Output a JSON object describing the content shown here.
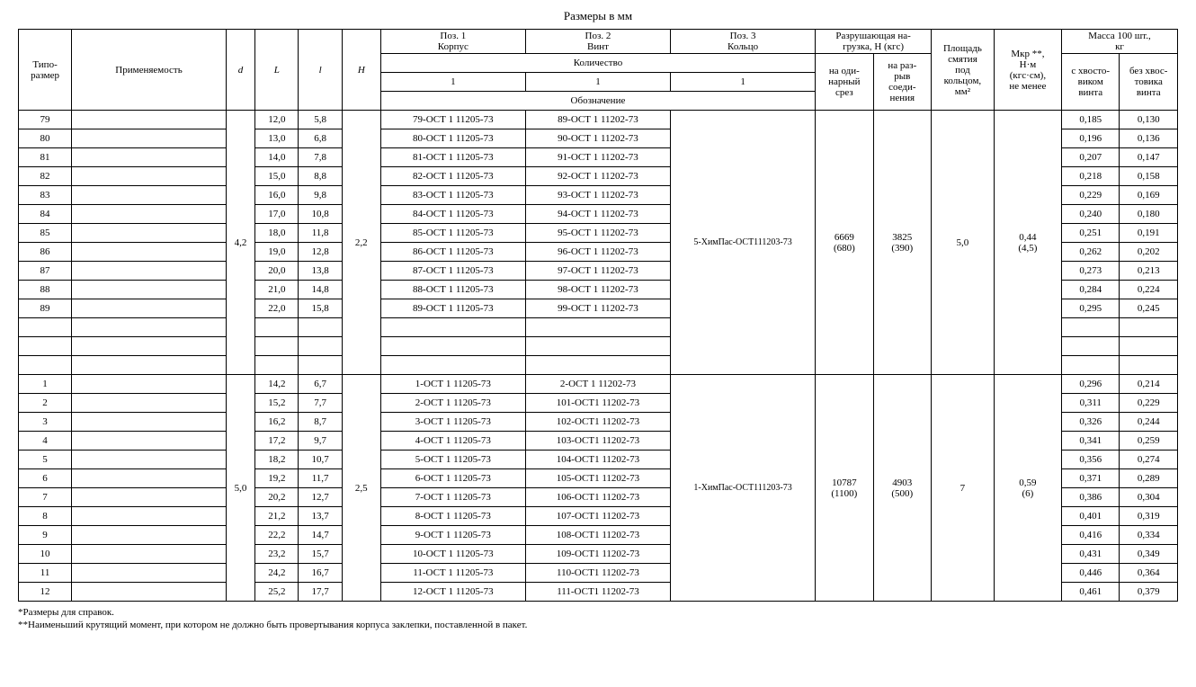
{
  "title": "Размеры в мм",
  "header": {
    "tiposize": "Типо-\nразмер",
    "applicability": "Применяемость",
    "d": "d",
    "L": "L",
    "l": "l",
    "H": "H",
    "pos1": "Поз. 1\nКорпус",
    "pos2": "Поз. 2\nВинт",
    "pos3": "Поз. 3\nКольцо",
    "qty": "Количество",
    "q1": "1",
    "q2": "1",
    "q3": "1",
    "designation": "Обозначение",
    "breaking": "Разрушающая на-\nгрузка, Н (кгс)",
    "shear": "на оди-\nнарный\nсрез",
    "tensile": "на раз-\nрыв\nсоеди-\nнения",
    "area": "Площадь\nсмятия\nпод\nкольцом,\nмм²",
    "mkr": "Mкр **,\nН·м\n(кгс·см),\nне менее",
    "mass": "Масса 100 шт.,\nкг",
    "mass_with": "с хвосто-\nвиком\nвинта",
    "mass_without": "без хвос-\nтовика\nвинта"
  },
  "group1": {
    "d": "4,2",
    "H": "2,2",
    "shear": "6669\n(680)",
    "tensile": "3825\n(390)",
    "area": "5,0",
    "mkr": "0,44\n(4,5)",
    "ring": "5-ХимПас-ОСТ111203-73",
    "rows": [
      {
        "ts": "79",
        "L": "12,0",
        "l": "5,8",
        "p1": "79-ОСТ 1 11205-73",
        "p2": "89-ОСТ 1 11202-73",
        "m1": "0,185",
        "m2": "0,130"
      },
      {
        "ts": "80",
        "L": "13,0",
        "l": "6,8",
        "p1": "80-ОСТ 1 11205-73",
        "p2": "90-ОСТ 1 11202-73",
        "m1": "0,196",
        "m2": "0,136"
      },
      {
        "ts": "81",
        "L": "14,0",
        "l": "7,8",
        "p1": "81-ОСТ 1 11205-73",
        "p2": "91-ОСТ 1 11202-73",
        "m1": "0,207",
        "m2": "0,147"
      },
      {
        "ts": "82",
        "L": "15,0",
        "l": "8,8",
        "p1": "82-ОСТ 1 11205-73",
        "p2": "92-ОСТ 1 11202-73",
        "m1": "0,218",
        "m2": "0,158"
      },
      {
        "ts": "83",
        "L": "16,0",
        "l": "9,8",
        "p1": "83-ОСТ 1 11205-73",
        "p2": "93-ОСТ 1 11202-73",
        "m1": "0,229",
        "m2": "0,169"
      },
      {
        "ts": "84",
        "L": "17,0",
        "l": "10,8",
        "p1": "84-ОСТ 1 11205-73",
        "p2": "94-ОСТ 1 11202-73",
        "m1": "0,240",
        "m2": "0,180"
      },
      {
        "ts": "85",
        "L": "18,0",
        "l": "11,8",
        "p1": "85-ОСТ 1 11205-73",
        "p2": "95-ОСТ 1 11202-73",
        "m1": "0,251",
        "m2": "0,191"
      },
      {
        "ts": "86",
        "L": "19,0",
        "l": "12,8",
        "p1": "86-ОСТ 1 11205-73",
        "p2": "96-ОСТ 1 11202-73",
        "m1": "0,262",
        "m2": "0,202"
      },
      {
        "ts": "87",
        "L": "20,0",
        "l": "13,8",
        "p1": "87-ОСТ 1 11205-73",
        "p2": "97-ОСТ 1 11202-73",
        "m1": "0,273",
        "m2": "0,213"
      },
      {
        "ts": "88",
        "L": "21,0",
        "l": "14,8",
        "p1": "88-ОСТ 1 11205-73",
        "p2": "98-ОСТ 1 11202-73",
        "m1": "0,284",
        "m2": "0,224"
      },
      {
        "ts": "89",
        "L": "22,0",
        "l": "15,8",
        "p1": "89-ОСТ 1 11205-73",
        "p2": "99-ОСТ 1 11202-73",
        "m1": "0,295",
        "m2": "0,245"
      }
    ]
  },
  "group2": {
    "d": "5,0",
    "H": "2,5",
    "shear": "10787\n(1100)",
    "tensile": "4903\n(500)",
    "area": "7",
    "mkr": "0,59\n(6)",
    "ring": "1-ХимПас-ОСТ111203-73",
    "rows": [
      {
        "ts": "1",
        "L": "14,2",
        "l": "6,7",
        "p1": "1-ОСТ 1 11205-73",
        "p2": "2-ОСТ 1 11202-73",
        "m1": "0,296",
        "m2": "0,214"
      },
      {
        "ts": "2",
        "L": "15,2",
        "l": "7,7",
        "p1": "2-ОСТ 1 11205-73",
        "p2": "101-ОСТ1 11202-73",
        "m1": "0,311",
        "m2": "0,229"
      },
      {
        "ts": "3",
        "L": "16,2",
        "l": "8,7",
        "p1": "3-ОСТ 1 11205-73",
        "p2": "102-ОСТ1 11202-73",
        "m1": "0,326",
        "m2": "0,244"
      },
      {
        "ts": "4",
        "L": "17,2",
        "l": "9,7",
        "p1": "4-ОСТ 1 11205-73",
        "p2": "103-ОСТ1 11202-73",
        "m1": "0,341",
        "m2": "0,259"
      },
      {
        "ts": "5",
        "L": "18,2",
        "l": "10,7",
        "p1": "5-ОСТ 1 11205-73",
        "p2": "104-ОСТ1 11202-73",
        "m1": "0,356",
        "m2": "0,274"
      },
      {
        "ts": "6",
        "L": "19,2",
        "l": "11,7",
        "p1": "6-ОСТ 1 11205-73",
        "p2": "105-ОСТ1 11202-73",
        "m1": "0,371",
        "m2": "0,289"
      },
      {
        "ts": "7",
        "L": "20,2",
        "l": "12,7",
        "p1": "7-ОСТ 1 11205-73",
        "p2": "106-ОСТ1 11202-73",
        "m1": "0,386",
        "m2": "0,304"
      },
      {
        "ts": "8",
        "L": "21,2",
        "l": "13,7",
        "p1": "8-ОСТ 1 11205-73",
        "p2": "107-ОСТ1 11202-73",
        "m1": "0,401",
        "m2": "0,319"
      },
      {
        "ts": "9",
        "L": "22,2",
        "l": "14,7",
        "p1": "9-ОСТ 1 11205-73",
        "p2": "108-ОСТ1 11202-73",
        "m1": "0,416",
        "m2": "0,334"
      },
      {
        "ts": "10",
        "L": "23,2",
        "l": "15,7",
        "p1": "10-ОСТ 1 11205-73",
        "p2": "109-ОСТ1 11202-73",
        "m1": "0,431",
        "m2": "0,349"
      },
      {
        "ts": "11",
        "L": "24,2",
        "l": "16,7",
        "p1": "11-ОСТ 1 11205-73",
        "p2": "110-ОСТ1 11202-73",
        "m1": "0,446",
        "m2": "0,364"
      },
      {
        "ts": "12",
        "L": "25,2",
        "l": "17,7",
        "p1": "12-ОСТ 1 11205-73",
        "p2": "111-ОСТ1 11202-73",
        "m1": "0,461",
        "m2": "0,379"
      }
    ]
  },
  "footnotes": {
    "f1": "*Размеры для справок.",
    "f2": "**Наименьший крутящий момент, при котором не должно быть провертывания корпуса заклепки, поставленной в пакет."
  }
}
